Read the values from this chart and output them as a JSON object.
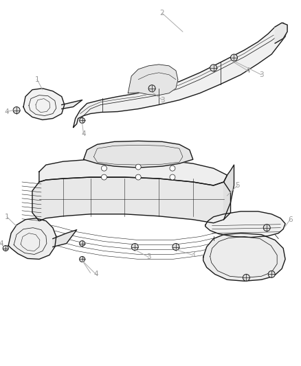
{
  "bg_color": "#ffffff",
  "line_color": "#1a1a1a",
  "label_color": "#999999",
  "leader_color": "#aaaaaa",
  "figsize": [
    4.38,
    5.33
  ],
  "dpi": 100,
  "lw_main": 1.0,
  "lw_thin": 0.55,
  "lw_inner": 0.4,
  "label_fontsize": 7.5
}
